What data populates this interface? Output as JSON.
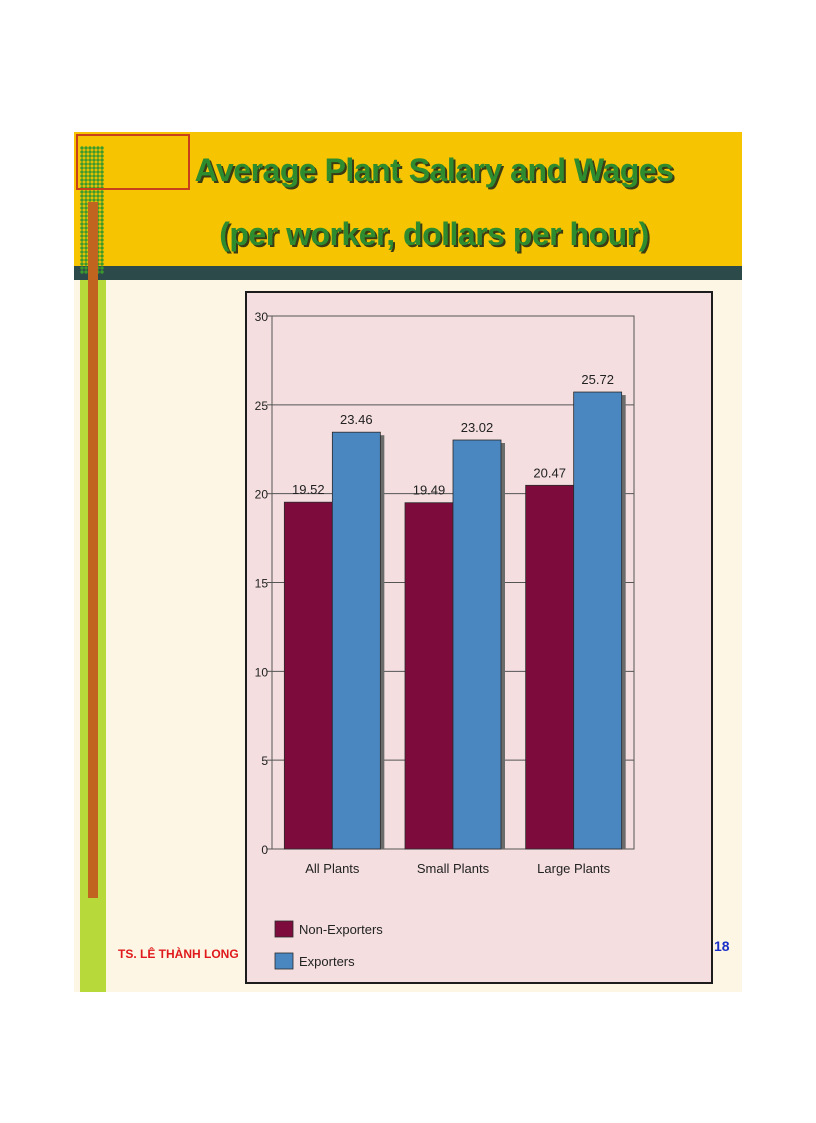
{
  "slide": {
    "title_line1": "Average Plant Salary and Wages",
    "title_line2": "(per worker, dollars per hour)",
    "author": "TS. LÊ THÀNH LONG",
    "page_number": "18"
  },
  "colors": {
    "header": "#f6c400",
    "title": "#2e8b2e",
    "non_exporters": "#7d0c3c",
    "exporters": "#4a86c0",
    "chart_background": "#f4dee0"
  },
  "chart_data": {
    "type": "bar",
    "categories": [
      "All Plants",
      "Small Plants",
      "Large Plants"
    ],
    "series": [
      {
        "name": "Non-Exporters",
        "values": [
          19.52,
          19.49,
          20.47
        ],
        "labels": [
          "19.52",
          "19.49",
          "20.47"
        ]
      },
      {
        "name": "Exporters",
        "values": [
          23.46,
          23.02,
          25.72
        ],
        "labels": [
          "23.46",
          "23.02",
          "25.72"
        ]
      }
    ],
    "ylim": [
      0,
      30
    ],
    "yticks": [
      0,
      5,
      10,
      15,
      20,
      25,
      30
    ],
    "grid": true,
    "legend_position": "bottom-left",
    "title": "",
    "xlabel": "",
    "ylabel": ""
  }
}
